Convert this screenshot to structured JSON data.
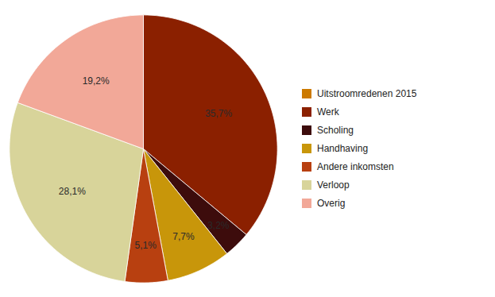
{
  "chart_data": {
    "type": "pie",
    "categories": [
      "Werk",
      "Scholing",
      "Handhaving",
      "Andere inkomsten",
      "Verloop",
      "Overig"
    ],
    "values": [
      35.7,
      3.2,
      7.7,
      5.1,
      28.1,
      19.2
    ],
    "value_labels": [
      "35,7%",
      "3,2%",
      "7,7%",
      "5,1%",
      "28,1%",
      "19,2%"
    ],
    "colors": [
      "#8B2000",
      "#3D0C0C",
      "#C8960A",
      "#B84010",
      "#D8D49A",
      "#F2A898"
    ],
    "data_labels": true,
    "legend": "right",
    "legend_entries": [
      {
        "name": "Uitstroomredenen 2015",
        "color": "#CC7A00"
      },
      {
        "name": "Werk",
        "color": "#8B2000"
      },
      {
        "name": "Scholing",
        "color": "#3D0C0C"
      },
      {
        "name": "Handhaving",
        "color": "#C8960A"
      },
      {
        "name": "Andere inkomsten",
        "color": "#B84010"
      },
      {
        "name": "Verloop",
        "color": "#D8D49A"
      },
      {
        "name": "Overig",
        "color": "#F2A898"
      }
    ]
  }
}
